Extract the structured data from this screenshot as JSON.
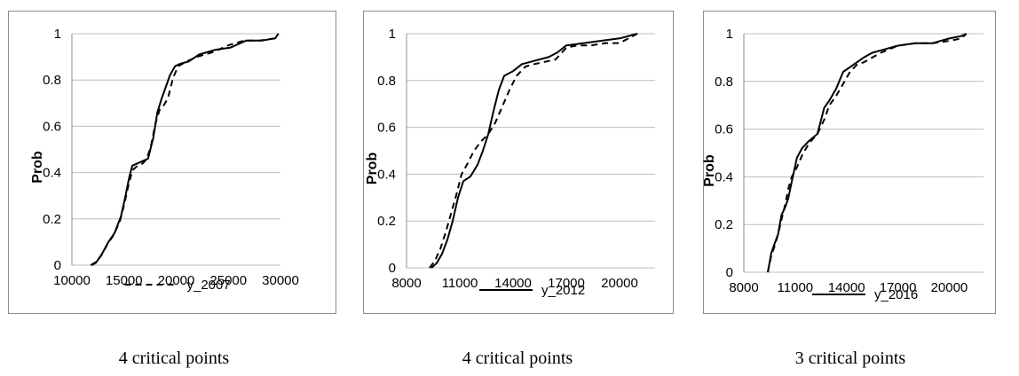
{
  "chart_data": [
    {
      "type": "line",
      "ylabel": "Prob",
      "xlim": [
        10000,
        30000
      ],
      "ylim": [
        0,
        1
      ],
      "xticks": [
        10000,
        15000,
        20000,
        25000,
        30000
      ],
      "xtick_labels": [
        "10000",
        "15000",
        "20000",
        "25000",
        "30000"
      ],
      "yticks": [
        0,
        0.2,
        0.4,
        0.6,
        0.8,
        1
      ],
      "ytick_labels": [
        "0",
        "0.2",
        "0.4",
        "0.6",
        "0.8",
        "1"
      ],
      "grid": true,
      "legend": "bottom",
      "legend_style": "dashed",
      "caption": "4 critical points",
      "series": [
        {
          "name": "y_2007",
          "style": "dashed",
          "x": [
            11800,
            12200,
            12800,
            13400,
            14000,
            14600,
            15000,
            15400,
            15800,
            16300,
            16800,
            17200,
            17600,
            18000,
            18400,
            18800,
            19200,
            19700,
            20200,
            21000,
            22000,
            23500,
            25000,
            26500,
            28000,
            29500,
            29800
          ],
          "y": [
            0,
            0.01,
            0.04,
            0.09,
            0.13,
            0.19,
            0.26,
            0.34,
            0.41,
            0.43,
            0.44,
            0.46,
            0.52,
            0.61,
            0.67,
            0.69,
            0.72,
            0.81,
            0.86,
            0.88,
            0.9,
            0.92,
            0.95,
            0.97,
            0.97,
            0.98,
            1
          ]
        },
        {
          "name": "",
          "style": "solid",
          "x": [
            11900,
            12300,
            12900,
            13500,
            14100,
            14700,
            15100,
            15500,
            15800,
            16300,
            16800,
            17300,
            17800,
            18200,
            18600,
            19000,
            19400,
            19900,
            20400,
            21200,
            22200,
            23700,
            25200,
            26700,
            28200,
            29500,
            29800
          ],
          "y": [
            0,
            0.01,
            0.05,
            0.1,
            0.14,
            0.21,
            0.29,
            0.38,
            0.43,
            0.44,
            0.45,
            0.46,
            0.55,
            0.66,
            0.72,
            0.77,
            0.82,
            0.86,
            0.87,
            0.88,
            0.91,
            0.93,
            0.94,
            0.97,
            0.97,
            0.98,
            1
          ]
        }
      ]
    },
    {
      "type": "line",
      "ylabel": "Prob",
      "xlim": [
        8000,
        22000
      ],
      "ylim": [
        0,
        1
      ],
      "xticks": [
        8000,
        11000,
        14000,
        17000,
        20000
      ],
      "xtick_labels": [
        "8000",
        "11000",
        "14000",
        "17000",
        "20000"
      ],
      "yticks": [
        0,
        0.2,
        0.4,
        0.6,
        0.8,
        1
      ],
      "ytick_labels": [
        "0",
        "0.2",
        "0.4",
        "0.6",
        "0.8",
        "1"
      ],
      "grid": true,
      "legend": "bottom",
      "legend_style": "solid",
      "caption": "4 critical points",
      "series": [
        {
          "name": "y_2012",
          "style": "solid",
          "x": [
            9400,
            9700,
            10000,
            10300,
            10600,
            10900,
            11200,
            11600,
            12000,
            12300,
            12600,
            12900,
            13200,
            13500,
            14000,
            14500,
            15000,
            15500,
            16000,
            16500,
            17000,
            18000,
            19000,
            20000,
            21000
          ],
          "y": [
            0,
            0.02,
            0.06,
            0.12,
            0.2,
            0.3,
            0.37,
            0.39,
            0.44,
            0.5,
            0.57,
            0.67,
            0.76,
            0.82,
            0.84,
            0.87,
            0.88,
            0.89,
            0.9,
            0.92,
            0.95,
            0.96,
            0.97,
            0.98,
            1
          ]
        },
        {
          "name": "",
          "style": "dashed",
          "x": [
            9300,
            9600,
            9900,
            10200,
            10500,
            10800,
            11100,
            11400,
            11800,
            12200,
            12600,
            13000,
            13400,
            13800,
            14200,
            14700,
            15200,
            15800,
            16400,
            17000,
            17600,
            18400,
            19200,
            20000,
            21000
          ],
          "y": [
            0,
            0.03,
            0.08,
            0.15,
            0.23,
            0.31,
            0.4,
            0.44,
            0.5,
            0.54,
            0.57,
            0.62,
            0.69,
            0.76,
            0.82,
            0.86,
            0.87,
            0.88,
            0.89,
            0.94,
            0.95,
            0.95,
            0.96,
            0.96,
            1
          ]
        }
      ]
    },
    {
      "type": "line",
      "ylabel": "Prob",
      "xlim": [
        8000,
        22000
      ],
      "ylim": [
        0,
        1
      ],
      "xticks": [
        8000,
        11000,
        14000,
        17000,
        20000
      ],
      "xtick_labels": [
        "8000",
        "11000",
        "14000",
        "17000",
        "20000"
      ],
      "yticks": [
        0,
        0.2,
        0.4,
        0.6,
        0.8,
        1
      ],
      "ytick_labels": [
        "0",
        "0.2",
        "0.4",
        "0.6",
        "0.8",
        "1"
      ],
      "grid": true,
      "legend": "bottom",
      "legend_style": "solid",
      "caption": "3 critical points",
      "series": [
        {
          "name": "y_2016",
          "style": "solid",
          "x": [
            9400,
            9600,
            9800,
            10000,
            10200,
            10400,
            10600,
            10800,
            11100,
            11400,
            11800,
            12300,
            12700,
            13000,
            13400,
            13800,
            14200,
            14600,
            15000,
            15500,
            16000,
            17000,
            18000,
            19000,
            20000,
            20700,
            21000
          ],
          "y": [
            0,
            0.08,
            0.12,
            0.16,
            0.24,
            0.27,
            0.31,
            0.38,
            0.48,
            0.52,
            0.55,
            0.58,
            0.69,
            0.72,
            0.77,
            0.84,
            0.86,
            0.88,
            0.9,
            0.92,
            0.93,
            0.95,
            0.96,
            0.96,
            0.98,
            0.99,
            1
          ]
        },
        {
          "name": "",
          "style": "dashed",
          "x": [
            9400,
            9600,
            9800,
            10000,
            10200,
            10400,
            10600,
            10800,
            11100,
            11400,
            11800,
            12300,
            12700,
            13000,
            13400,
            13800,
            14200,
            14600,
            15000,
            15500,
            16000,
            17000,
            18000,
            19000,
            20000,
            20700,
            21000
          ],
          "y": [
            0,
            0.07,
            0.11,
            0.16,
            0.22,
            0.28,
            0.35,
            0.4,
            0.44,
            0.49,
            0.54,
            0.58,
            0.64,
            0.7,
            0.74,
            0.79,
            0.84,
            0.87,
            0.88,
            0.9,
            0.92,
            0.95,
            0.96,
            0.96,
            0.97,
            0.98,
            1
          ]
        }
      ]
    }
  ]
}
